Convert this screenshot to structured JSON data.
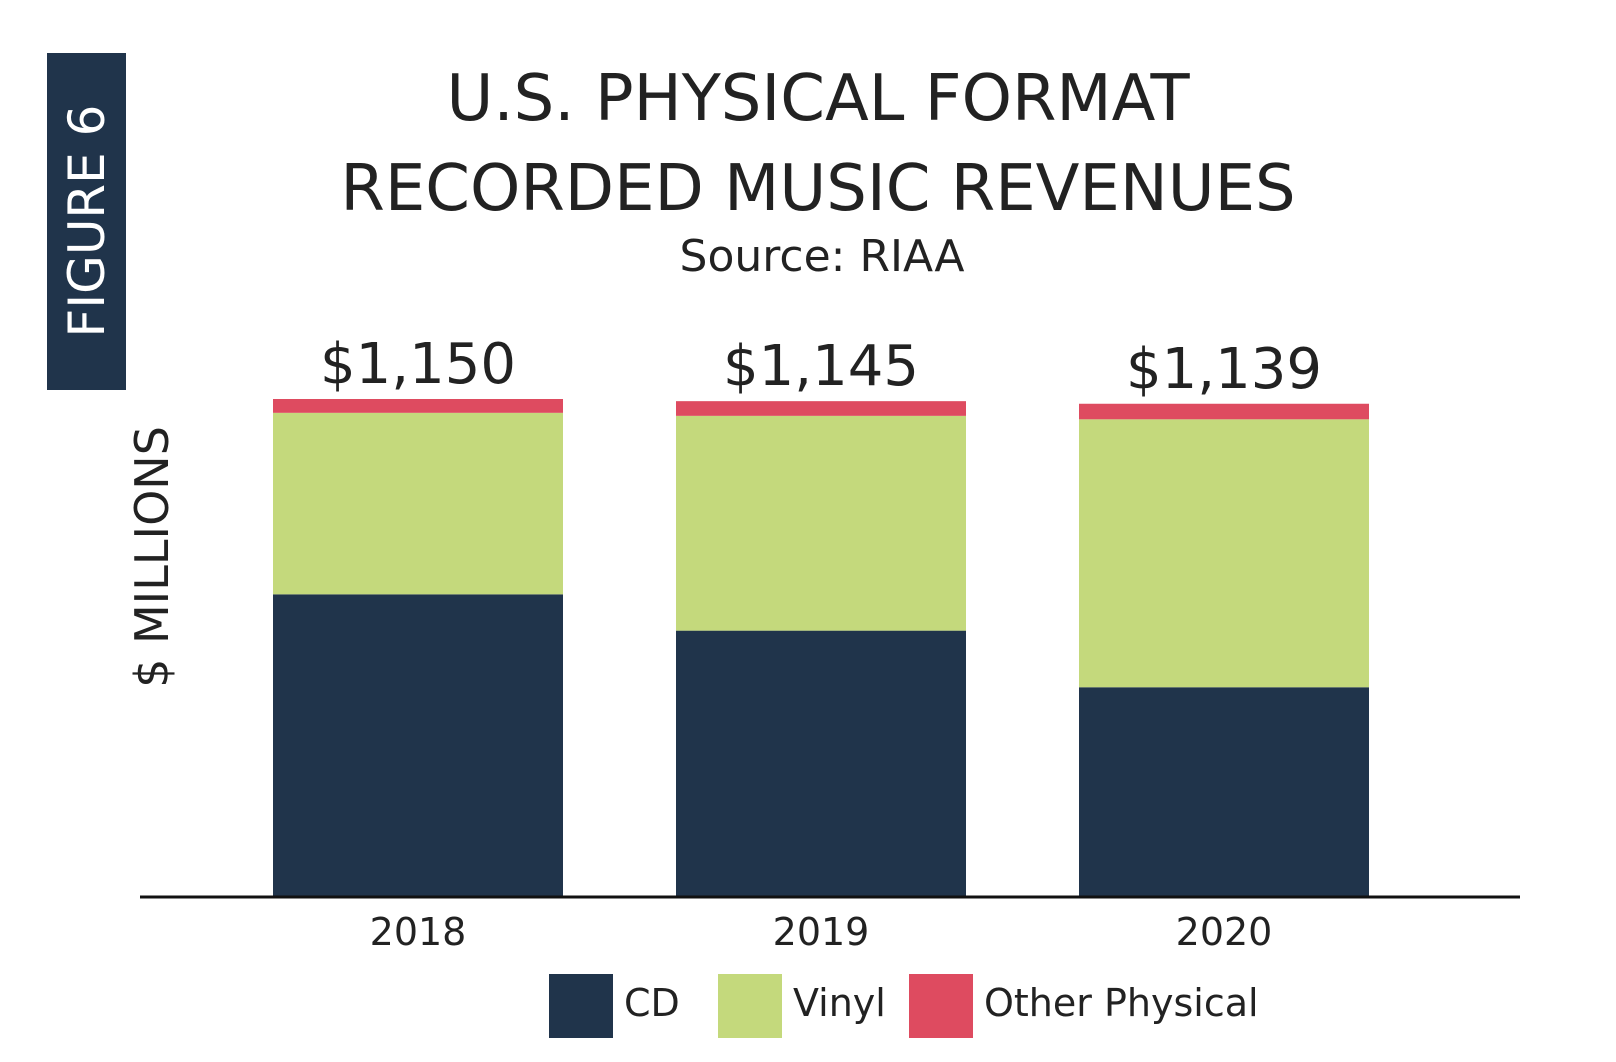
{
  "figure_label": "FIGURE 6",
  "chart_data": {
    "type": "bar",
    "stacked": true,
    "title_lines": [
      "U.S. PHYSICAL FORMAT",
      "RECORDED MUSIC REVENUES"
    ],
    "subtitle": "Source: RIAA",
    "ylabel": "$ MILLIONS",
    "xlabel": "",
    "categories": [
      "2018",
      "2019",
      "2020"
    ],
    "series": [
      {
        "name": "CD",
        "color": "#20344b",
        "values": [
          698,
          614,
          483
        ]
      },
      {
        "name": "Vinyl",
        "color": "#c4d97c",
        "values": [
          420,
          497,
          620
        ]
      },
      {
        "name": "Other Physical",
        "color": "#de4b60",
        "values": [
          32,
          34,
          36
        ]
      }
    ],
    "totals": [
      "$1,150",
      "$1,145",
      "$1,139"
    ],
    "ylim": [
      0,
      1150
    ],
    "grid": false,
    "legend_position": "bottom"
  }
}
